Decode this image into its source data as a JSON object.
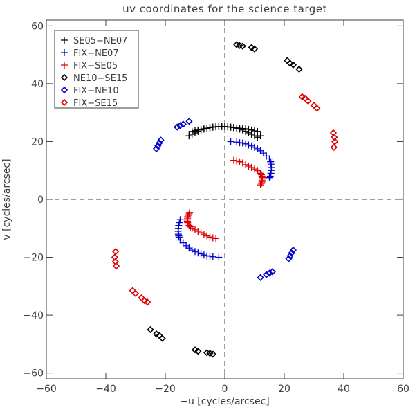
{
  "chart_data": {
    "type": "scatter",
    "title": "uv coordinates for the science target",
    "xlabel": "−u [cycles/arcsec]",
    "ylabel": "v [cycles/arcsec]",
    "xlim": [
      -60,
      60
    ],
    "ylim": [
      -62,
      62
    ],
    "xticks": [
      -60,
      -40,
      -20,
      0,
      20,
      40,
      60
    ],
    "yticks": [
      -60,
      -40,
      -20,
      0,
      20,
      40,
      60
    ],
    "xtick_labels": [
      "−60",
      "−40",
      "−20",
      "0",
      "20",
      "40",
      "60"
    ],
    "ytick_labels": [
      "−60",
      "−40",
      "−20",
      "0",
      "20",
      "40",
      "60"
    ],
    "grid": false,
    "reference_lines": [
      "x=0 dashed",
      "y=0 dashed"
    ],
    "legend_position": "top-left",
    "series": [
      {
        "name": "SE05−NE07",
        "marker": "plus",
        "color": "#000000",
        "points": [
          [
            -12,
            22
          ],
          [
            -11,
            22.5
          ],
          [
            -10,
            23
          ],
          [
            -9,
            23.5
          ],
          [
            -8,
            24
          ],
          [
            -7,
            24.3
          ],
          [
            -6,
            24.6
          ],
          [
            -5,
            24.8
          ],
          [
            -4,
            25
          ],
          [
            -3,
            25.1
          ],
          [
            -2,
            25.2
          ],
          [
            -1,
            25.2
          ],
          [
            0,
            25.2
          ],
          [
            1,
            25.1
          ],
          [
            2,
            25
          ],
          [
            3,
            24.9
          ],
          [
            4,
            24.7
          ],
          [
            5,
            24.6
          ],
          [
            6,
            24.5
          ],
          [
            7,
            24.4
          ],
          [
            8,
            24.2
          ],
          [
            9,
            24
          ],
          [
            10,
            23.7
          ],
          [
            11,
            23.5
          ],
          [
            12,
            22
          ],
          [
            11,
            21.5
          ],
          [
            10,
            22
          ],
          [
            9,
            22.5
          ],
          [
            8,
            23
          ],
          [
            7,
            23.5
          ],
          [
            6,
            24
          ],
          [
            5,
            24.3
          ],
          [
            4,
            24.6
          ],
          [
            3,
            24.8
          ],
          [
            2,
            25
          ],
          [
            1,
            25.1
          ],
          [
            0,
            25.2
          ],
          [
            -1,
            25.2
          ],
          [
            -2,
            25.2
          ],
          [
            -3,
            25.1
          ],
          [
            -4,
            25
          ],
          [
            -5,
            24.8
          ],
          [
            -6,
            24.6
          ],
          [
            -7,
            24.4
          ],
          [
            -8,
            24.2
          ],
          [
            -9,
            24
          ],
          [
            -10,
            23.8
          ],
          [
            -11,
            23.5
          ],
          [
            -12,
            22
          ]
        ]
      },
      {
        "name": "FIX−NE07",
        "marker": "plus",
        "color": "#0000cc",
        "points": [
          [
            -15.5,
            -12.5
          ],
          [
            -15.6,
            -12
          ],
          [
            -15.7,
            -11
          ],
          [
            -15.6,
            -10
          ],
          [
            -15.5,
            -9
          ],
          [
            -15.3,
            -8
          ],
          [
            -15,
            -7
          ],
          [
            -15.5,
            -12.5
          ],
          [
            -15.4,
            -13
          ],
          [
            -15,
            -14
          ],
          [
            -14,
            -15
          ],
          [
            -13,
            -16
          ],
          [
            -12,
            -16.8
          ],
          [
            -11,
            -17.5
          ],
          [
            -10,
            -18
          ],
          [
            -9,
            -18.5
          ],
          [
            -8,
            -18.8
          ],
          [
            -7,
            -19.2
          ],
          [
            -6,
            -19.5
          ],
          [
            -5,
            -19.6
          ],
          [
            -4,
            -19.8
          ],
          [
            -2,
            -20
          ],
          [
            15.5,
            12.5
          ],
          [
            15.6,
            12
          ],
          [
            15.7,
            11
          ],
          [
            15.6,
            10
          ],
          [
            15.5,
            9
          ],
          [
            15.3,
            8
          ],
          [
            15,
            7.5
          ],
          [
            15.4,
            13
          ],
          [
            15,
            14
          ],
          [
            14,
            15
          ],
          [
            13,
            16
          ],
          [
            12,
            16.8
          ],
          [
            11,
            17.5
          ],
          [
            10,
            18
          ],
          [
            9,
            18.5
          ],
          [
            8,
            18.8
          ],
          [
            7,
            19.2
          ],
          [
            6,
            19.5
          ],
          [
            5,
            19.6
          ],
          [
            4,
            19.8
          ],
          [
            2,
            20
          ]
        ]
      },
      {
        "name": "FIX−SE05",
        "marker": "plus",
        "color": "#dd0000",
        "points": [
          [
            3,
            13.5
          ],
          [
            4,
            13.3
          ],
          [
            5,
            13
          ],
          [
            6,
            12.6
          ],
          [
            7,
            12
          ],
          [
            8,
            11.5
          ],
          [
            9,
            11
          ],
          [
            10,
            10.5
          ],
          [
            11,
            10
          ],
          [
            11.5,
            9.5
          ],
          [
            12,
            9
          ],
          [
            12.3,
            8.5
          ],
          [
            12.5,
            8
          ],
          [
            12.6,
            7.5
          ],
          [
            12.6,
            7
          ],
          [
            12.5,
            6.5
          ],
          [
            12.5,
            6
          ],
          [
            12.3,
            5.5
          ],
          [
            12,
            5
          ],
          [
            -3,
            -13.5
          ],
          [
            -4,
            -13.3
          ],
          [
            -5,
            -13
          ],
          [
            -6,
            -12.6
          ],
          [
            -7,
            -12
          ],
          [
            -8,
            -11.5
          ],
          [
            -9,
            -11
          ],
          [
            -10,
            -10.5
          ],
          [
            -11,
            -10
          ],
          [
            -11.5,
            -9.5
          ],
          [
            -12,
            -9
          ],
          [
            -12.3,
            -8.5
          ],
          [
            -12.5,
            -8
          ],
          [
            -12.6,
            -7.5
          ],
          [
            -12.6,
            -7
          ],
          [
            -12.5,
            -6.5
          ],
          [
            -12.5,
            -6
          ],
          [
            -12.3,
            -5.5
          ],
          [
            -12,
            -5
          ],
          [
            -11.8,
            -4.5
          ]
        ]
      },
      {
        "name": "NE10−SE15",
        "marker": "diamond",
        "color": "#000000",
        "points": [
          [
            4,
            53.5
          ],
          [
            5,
            53.2
          ],
          [
            6,
            53
          ],
          [
            9,
            52.5
          ],
          [
            10,
            52
          ],
          [
            21,
            48
          ],
          [
            22,
            47
          ],
          [
            23,
            46.5
          ],
          [
            25,
            45
          ],
          [
            -4,
            -53.5
          ],
          [
            -5,
            -53.2
          ],
          [
            -6,
            -53
          ],
          [
            -9,
            -52.5
          ],
          [
            -10,
            -52
          ],
          [
            -21,
            -48
          ],
          [
            -22,
            -47
          ],
          [
            -23,
            -46.5
          ],
          [
            -25,
            -45
          ]
        ]
      },
      {
        "name": "FIX−NE10",
        "marker": "diamond",
        "color": "#0000cc",
        "points": [
          [
            -23,
            17.5
          ],
          [
            -22.5,
            18.5
          ],
          [
            -22,
            19.5
          ],
          [
            -21.5,
            20.5
          ],
          [
            -16,
            25
          ],
          [
            -15,
            25.5
          ],
          [
            -14,
            26
          ],
          [
            -12,
            27
          ],
          [
            23,
            -17.5
          ],
          [
            22.5,
            -18.5
          ],
          [
            22,
            -19.5
          ],
          [
            21.5,
            -20.5
          ],
          [
            16,
            -25
          ],
          [
            15,
            -25.5
          ],
          [
            14,
            -26
          ],
          [
            12,
            -27
          ]
        ]
      },
      {
        "name": "FIX−SE15",
        "marker": "diamond",
        "color": "#dd0000",
        "points": [
          [
            26,
            35.5
          ],
          [
            27,
            35
          ],
          [
            28,
            34
          ],
          [
            30,
            32.5
          ],
          [
            31,
            31.5
          ],
          [
            36.5,
            23
          ],
          [
            36.8,
            21.5
          ],
          [
            37,
            20
          ],
          [
            36.7,
            18
          ],
          [
            -26,
            -35.5
          ],
          [
            -27,
            -35
          ],
          [
            -28,
            -34
          ],
          [
            -30,
            -32.5
          ],
          [
            -31,
            -31.5
          ],
          [
            -36.5,
            -23
          ],
          [
            -36.8,
            -21.5
          ],
          [
            -37,
            -20
          ],
          [
            -36.7,
            -18
          ]
        ]
      }
    ]
  }
}
